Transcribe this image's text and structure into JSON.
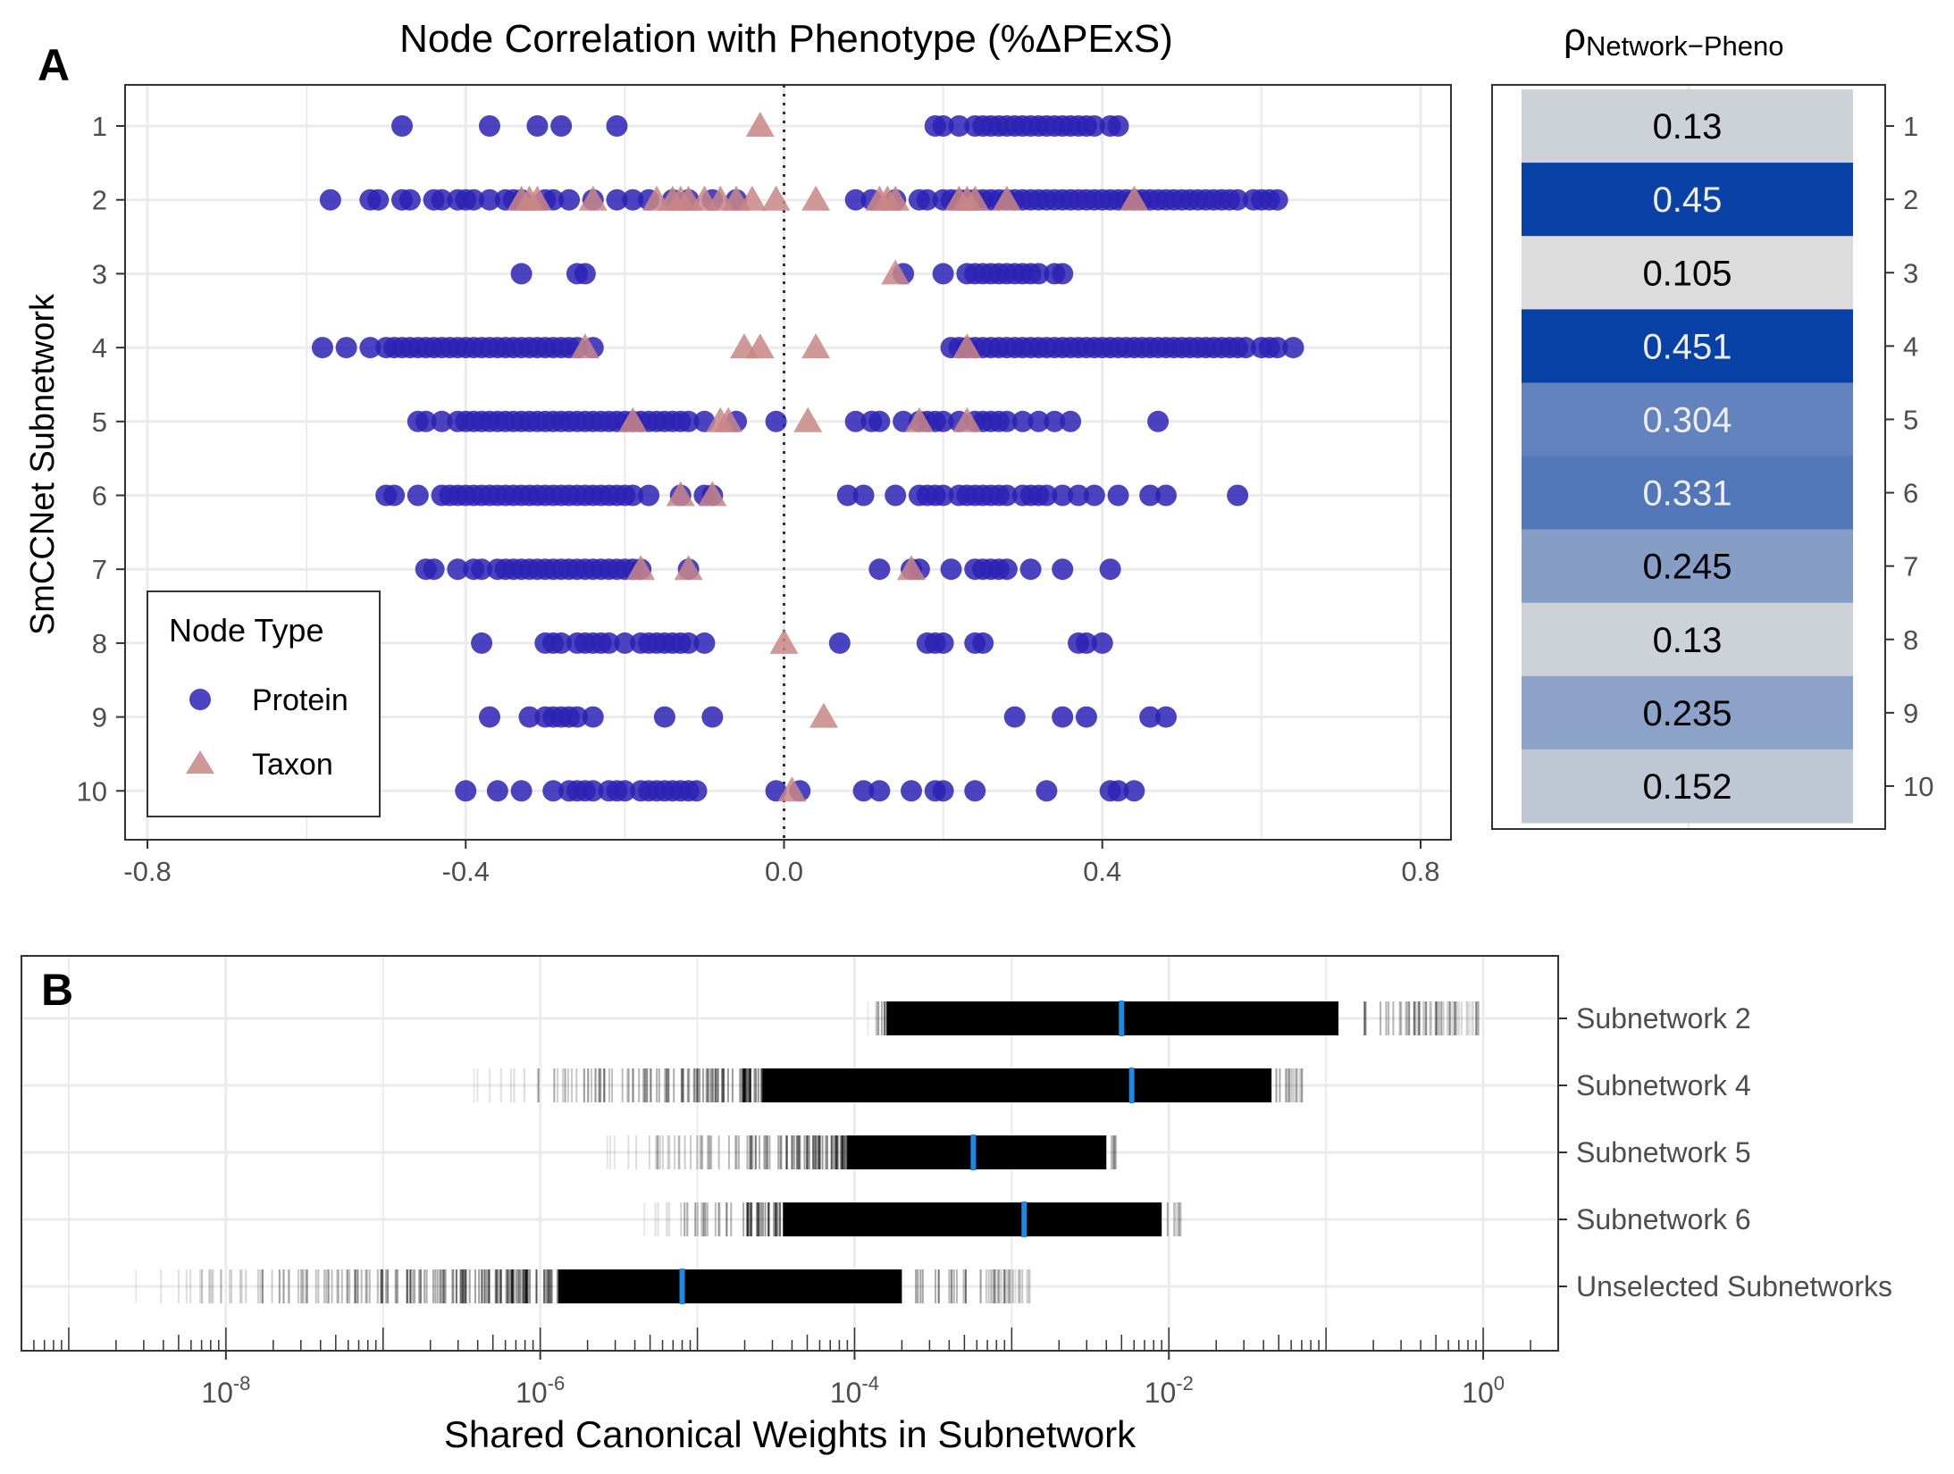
{
  "colors": {
    "protein": "#2B22B4",
    "taxon": "#C98686",
    "heat_low": "#DCDCDC",
    "heat_high": "#0841A6",
    "median_line": "#1E88E5",
    "grid": "#EBEBEB"
  },
  "panel_a": {
    "letter": "A",
    "title": "Node Correlation with Phenotype (%ΔPExS)",
    "ylabel": "SmCCNet Subnetwork",
    "legend": {
      "title": "Node Type",
      "items": [
        "Protein",
        "Taxon"
      ]
    }
  },
  "panel_heat": {
    "title_symbol": "ρ",
    "title_subscript": "Network−Pheno"
  },
  "panel_b": {
    "letter": "B",
    "xlabel": "Shared Canonical Weights in Subnetwork"
  },
  "chart_data": [
    {
      "type": "scatter",
      "title": "Node Correlation with Phenotype (%ΔPExS)",
      "xlabel": "",
      "ylabel": "SmCCNet Subnetwork",
      "xlim": [
        -0.8,
        0.8
      ],
      "x_ticks": [
        "-0.8",
        "-0.4",
        "0.0",
        "0.4",
        "0.8"
      ],
      "categories": [
        "1",
        "2",
        "3",
        "4",
        "5",
        "6",
        "7",
        "8",
        "9",
        "10"
      ],
      "reference_line_x": 0.0,
      "grid": true,
      "legend_position": "bottom-left",
      "series": [
        {
          "name": "Protein",
          "marker": "circle",
          "points": {
            "1": [
              -0.48,
              -0.37,
              -0.31,
              -0.28,
              -0.21,
              0.19,
              0.2,
              0.22,
              0.24,
              0.25,
              0.26,
              0.27,
              0.28,
              0.29,
              0.3,
              0.31,
              0.32,
              0.33,
              0.34,
              0.35,
              0.36,
              0.37,
              0.38,
              0.39,
              0.41,
              0.42
            ],
            "2": [
              -0.57,
              -0.52,
              -0.51,
              -0.48,
              -0.47,
              -0.44,
              -0.43,
              -0.41,
              -0.4,
              -0.39,
              -0.37,
              -0.35,
              -0.34,
              -0.33,
              -0.3,
              -0.29,
              -0.27,
              -0.24,
              -0.21,
              -0.19,
              -0.17,
              -0.14,
              -0.12,
              -0.09,
              -0.06,
              0.09,
              0.11,
              0.14,
              0.17,
              0.18,
              0.2,
              0.21,
              0.22,
              0.23,
              0.24,
              0.25,
              0.26,
              0.27,
              0.28,
              0.29,
              0.3,
              0.31,
              0.32,
              0.33,
              0.34,
              0.35,
              0.36,
              0.37,
              0.38,
              0.39,
              0.4,
              0.41,
              0.42,
              0.43,
              0.44,
              0.45,
              0.46,
              0.47,
              0.48,
              0.49,
              0.5,
              0.51,
              0.52,
              0.53,
              0.54,
              0.55,
              0.56,
              0.57,
              0.59,
              0.6,
              0.61,
              0.62
            ],
            "3": [
              -0.33,
              -0.26,
              -0.25,
              0.15,
              0.2,
              0.23,
              0.24,
              0.25,
              0.26,
              0.27,
              0.28,
              0.29,
              0.3,
              0.31,
              0.32,
              0.34,
              0.35
            ],
            "4": [
              -0.58,
              -0.55,
              -0.52,
              -0.5,
              -0.49,
              -0.48,
              -0.47,
              -0.46,
              -0.45,
              -0.44,
              -0.43,
              -0.42,
              -0.41,
              -0.4,
              -0.39,
              -0.38,
              -0.37,
              -0.36,
              -0.35,
              -0.34,
              -0.33,
              -0.32,
              -0.31,
              -0.3,
              -0.29,
              -0.28,
              -0.27,
              -0.26,
              -0.24,
              0.21,
              0.22,
              0.23,
              0.24,
              0.25,
              0.26,
              0.27,
              0.28,
              0.29,
              0.3,
              0.31,
              0.32,
              0.33,
              0.34,
              0.35,
              0.36,
              0.37,
              0.38,
              0.39,
              0.4,
              0.41,
              0.42,
              0.43,
              0.44,
              0.45,
              0.46,
              0.47,
              0.48,
              0.49,
              0.5,
              0.51,
              0.52,
              0.53,
              0.54,
              0.55,
              0.56,
              0.57,
              0.58,
              0.6,
              0.61,
              0.62,
              0.64
            ],
            "5": [
              -0.46,
              -0.45,
              -0.43,
              -0.41,
              -0.4,
              -0.39,
              -0.38,
              -0.37,
              -0.36,
              -0.35,
              -0.34,
              -0.33,
              -0.32,
              -0.31,
              -0.3,
              -0.29,
              -0.28,
              -0.27,
              -0.26,
              -0.25,
              -0.24,
              -0.23,
              -0.22,
              -0.21,
              -0.2,
              -0.19,
              -0.18,
              -0.17,
              -0.16,
              -0.15,
              -0.14,
              -0.13,
              -0.12,
              -0.1,
              -0.06,
              -0.01,
              0.09,
              0.11,
              0.12,
              0.15,
              0.17,
              0.18,
              0.19,
              0.2,
              0.22,
              0.24,
              0.25,
              0.26,
              0.27,
              0.28,
              0.3,
              0.32,
              0.34,
              0.36,
              0.47
            ],
            "6": [
              -0.5,
              -0.49,
              -0.46,
              -0.43,
              -0.42,
              -0.41,
              -0.4,
              -0.39,
              -0.38,
              -0.37,
              -0.36,
              -0.35,
              -0.34,
              -0.33,
              -0.32,
              -0.31,
              -0.3,
              -0.29,
              -0.28,
              -0.27,
              -0.26,
              -0.25,
              -0.24,
              -0.23,
              -0.22,
              -0.21,
              -0.2,
              -0.19,
              -0.17,
              -0.13,
              -0.1,
              -0.09,
              0.08,
              0.1,
              0.14,
              0.17,
              0.18,
              0.19,
              0.2,
              0.22,
              0.23,
              0.24,
              0.25,
              0.26,
              0.27,
              0.28,
              0.3,
              0.31,
              0.32,
              0.33,
              0.35,
              0.37,
              0.39,
              0.42,
              0.46,
              0.48,
              0.57
            ],
            "7": [
              -0.45,
              -0.44,
              -0.41,
              -0.39,
              -0.38,
              -0.36,
              -0.35,
              -0.34,
              -0.33,
              -0.32,
              -0.31,
              -0.3,
              -0.29,
              -0.28,
              -0.27,
              -0.26,
              -0.25,
              -0.24,
              -0.23,
              -0.22,
              -0.21,
              -0.2,
              -0.19,
              -0.18,
              -0.12,
              0.12,
              0.16,
              0.17,
              0.21,
              0.24,
              0.25,
              0.26,
              0.27,
              0.28,
              0.31,
              0.35,
              0.41
            ],
            "8": [
              -0.38,
              -0.3,
              -0.29,
              -0.28,
              -0.26,
              -0.25,
              -0.24,
              -0.23,
              -0.22,
              -0.2,
              -0.18,
              -0.17,
              -0.16,
              -0.15,
              -0.14,
              -0.13,
              -0.12,
              -0.1,
              0.07,
              0.18,
              0.19,
              0.2,
              0.24,
              0.25,
              0.37,
              0.38,
              0.4
            ],
            "9": [
              -0.37,
              -0.32,
              -0.3,
              -0.29,
              -0.28,
              -0.27,
              -0.26,
              -0.24,
              -0.15,
              -0.09,
              0.29,
              0.35,
              0.38,
              0.46,
              0.48
            ],
            "10": [
              -0.4,
              -0.36,
              -0.33,
              -0.29,
              -0.27,
              -0.26,
              -0.25,
              -0.24,
              -0.22,
              -0.21,
              -0.2,
              -0.18,
              -0.17,
              -0.16,
              -0.15,
              -0.14,
              -0.13,
              -0.12,
              -0.11,
              -0.01,
              0.02,
              0.1,
              0.12,
              0.16,
              0.19,
              0.2,
              0.24,
              0.33,
              0.41,
              0.42,
              0.44
            ]
          }
        },
        {
          "name": "Taxon",
          "marker": "triangle",
          "points": {
            "1": [
              -0.03
            ],
            "2": [
              -0.33,
              -0.32,
              -0.31,
              -0.24,
              -0.16,
              -0.14,
              -0.13,
              -0.12,
              -0.1,
              -0.08,
              -0.06,
              -0.04,
              -0.01,
              0.04,
              0.12,
              0.13,
              0.14,
              0.22,
              0.23,
              0.24,
              0.28,
              0.44
            ],
            "3": [
              0.14
            ],
            "4": [
              -0.25,
              -0.05,
              -0.03,
              0.04,
              0.23
            ],
            "5": [
              -0.19,
              -0.08,
              -0.07,
              0.03,
              0.17,
              0.23
            ],
            "6": [
              -0.13,
              -0.09
            ],
            "7": [
              -0.18,
              -0.12,
              0.16
            ],
            "8": [
              0.0
            ],
            "9": [
              0.05
            ],
            "10": [
              0.01
            ]
          }
        }
      ]
    },
    {
      "type": "heatmap",
      "title": "ρNetwork−Pheno",
      "categories": [
        "1",
        "2",
        "3",
        "4",
        "5",
        "6",
        "7",
        "8",
        "9",
        "10"
      ],
      "values": [
        0.13,
        0.45,
        0.105,
        0.451,
        0.304,
        0.331,
        0.245,
        0.13,
        0.235,
        0.152
      ],
      "labels": [
        "0.13",
        "0.45",
        "0.105",
        "0.451",
        "0.304",
        "0.331",
        "0.245",
        "0.13",
        "0.235",
        "0.152"
      ]
    },
    {
      "type": "scatter",
      "title": "",
      "xlabel": "Shared Canonical Weights in Subnetwork",
      "ylabel": "",
      "x_scale": "log10",
      "xlim": [
        5e-10,
        3
      ],
      "x_ticks": [
        1e-08,
        1e-06,
        0.0001,
        0.01,
        1
      ],
      "x_tick_labels": [
        {
          "base": "10",
          "exp": "-8"
        },
        {
          "base": "10",
          "exp": "-6"
        },
        {
          "base": "10",
          "exp": "-4"
        },
        {
          "base": "10",
          "exp": "-2"
        },
        {
          "base": "10",
          "exp": "0"
        }
      ],
      "categories": [
        "Subnetwork 2",
        "Subnetwork 4",
        "Subnetwork 5",
        "Subnetwork 6",
        "Unselected Subnetworks"
      ],
      "series": [
        {
          "name": "Subnetwork 2",
          "min": 0.00012,
          "dense_start": 0.00016,
          "dense_end": 0.12,
          "max": 1.0,
          "median": 0.005
        },
        {
          "name": "Subnetwork 4",
          "min": 3.3e-07,
          "dense_start": 2.6e-05,
          "dense_end": 0.045,
          "max": 0.075,
          "median": 0.0058
        },
        {
          "name": "Subnetwork 5",
          "min": 2.2e-06,
          "dense_start": 9e-05,
          "dense_end": 0.004,
          "max": 0.0046,
          "median": 0.00057
        },
        {
          "name": "Subnetwork 6",
          "min": 4.3e-06,
          "dense_start": 3.5e-05,
          "dense_end": 0.009,
          "max": 0.012,
          "median": 0.0012
        },
        {
          "name": "Unselected Subnetworks",
          "min": 2.2e-09,
          "dense_start": 1.3e-06,
          "dense_end": 0.0002,
          "max": 0.0013,
          "median": 8e-06
        }
      ]
    }
  ]
}
